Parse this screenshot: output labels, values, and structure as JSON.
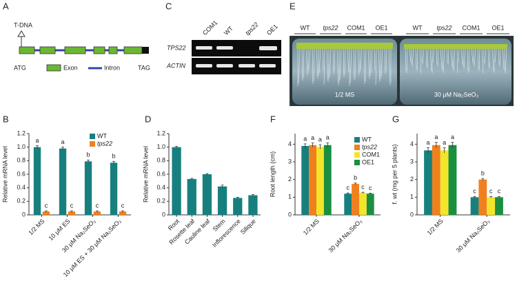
{
  "figure": {
    "a": {
      "label": "A",
      "tdna": "T-DNA",
      "start": "ATG",
      "stop": "TAG",
      "exon": "Exon",
      "intron": "Intron"
    },
    "c": {
      "label": "C",
      "lanes": [
        "COM1",
        "WT",
        "tps22",
        "OE1"
      ],
      "rows": [
        "TPS22",
        "ACTIN"
      ]
    },
    "e": {
      "label": "E",
      "lanes_left": [
        "WT",
        "tps22",
        "COM1",
        "OE1"
      ],
      "lanes_right": [
        "WT",
        "tps22",
        "COM1",
        "OE1"
      ],
      "plate_left": "1/2 MS",
      "plate_right": "30 μM Na₂SeO₃"
    }
  },
  "chart_data": [
    {
      "type": "bar",
      "label": "B",
      "y_label": "Relative mRNA level",
      "categories": [
        "1/2 MS",
        "10 μM ES",
        "30 μM Na₂SeO₃",
        "10 μM ES + 30 μM Na₂SeO₃"
      ],
      "series": [
        {
          "name": "WT",
          "color": "#17807f",
          "values": [
            1.0,
            0.98,
            0.79,
            0.77
          ],
          "errors": [
            0.02,
            0.02,
            0.02,
            0.02
          ],
          "letters": [
            "a",
            "a",
            "b",
            "b"
          ]
        },
        {
          "name": "tps22",
          "name_style": "italic",
          "color": "#f0801e",
          "values": [
            0.05,
            0.05,
            0.05,
            0.05
          ],
          "errors": [
            0.01,
            0.01,
            0.01,
            0.01
          ],
          "letters": [
            "c",
            "c",
            "c",
            "c"
          ]
        }
      ],
      "ylim": [
        0,
        1.2
      ],
      "yticks": [
        0,
        0.2,
        0.4,
        0.6,
        0.8,
        {
          "value": 1,
          "label": "1.0"
        },
        1.2
      ]
    },
    {
      "type": "bar",
      "label": "D",
      "y_label": "Relative mRNA level",
      "categories": [
        "Root",
        "Rosette leaf",
        "Cauline leaf",
        "Stem",
        "Inflorescence",
        "Silique"
      ],
      "series": [
        {
          "color": "#17807f",
          "values": [
            1.0,
            0.53,
            0.6,
            0.42,
            0.25,
            0.29
          ],
          "errors": [
            0.01,
            0.01,
            0.01,
            0.02,
            0.01,
            0.01
          ]
        }
      ],
      "ylim": [
        0,
        1.2
      ],
      "yticks": [
        0,
        0.2,
        0.4,
        0.6,
        0.8,
        {
          "value": 1,
          "label": "1.0"
        },
        1.2
      ]
    },
    {
      "type": "bar",
      "label": "F",
      "y_label": "Root length (cm)",
      "categories": [
        "1/2 MS",
        "30 μM Na₂SeO₃"
      ],
      "series": [
        {
          "name": "WT",
          "color": "#17807f",
          "values": [
            3.9,
            1.2
          ],
          "errors": [
            0.12,
            0.04
          ],
          "letters": [
            "a",
            "c"
          ]
        },
        {
          "name": "tps22",
          "name_style": "italic",
          "color": "#f0801e",
          "values": [
            3.95,
            1.75
          ],
          "errors": [
            0.12,
            0.05
          ],
          "letters": [
            "a",
            "b"
          ]
        },
        {
          "name": "COM1",
          "color": "#f3e62a",
          "values": [
            3.85,
            1.25
          ],
          "errors": [
            0.12,
            0.03
          ],
          "letters": [
            "a",
            "c"
          ]
        },
        {
          "name": "OE1",
          "color": "#1a8f40",
          "values": [
            3.95,
            1.2
          ],
          "errors": [
            0.13,
            0.03
          ],
          "letters": [
            "a",
            "c"
          ]
        }
      ],
      "ylim": [
        0,
        4.6
      ],
      "yticks": [
        0,
        1,
        2,
        3,
        4
      ]
    },
    {
      "type": "bar",
      "label": "G",
      "y_label": "f. wt (mg per 5 plants)",
      "categories": [
        "1/2 MS",
        "30 μM Na₂SeO₃"
      ],
      "series": [
        {
          "color": "#17807f",
          "values": [
            3.65,
            1.0
          ],
          "errors": [
            0.15,
            0.04
          ],
          "letters": [
            "a",
            "c"
          ]
        },
        {
          "color": "#f0801e",
          "values": [
            3.95,
            2.0
          ],
          "errors": [
            0.15,
            0.06
          ],
          "letters": [
            "a",
            "b"
          ]
        },
        {
          "color": "#f3e62a",
          "values": [
            3.65,
            1.0
          ],
          "errors": [
            0.15,
            0.04
          ],
          "letters": [
            "a",
            "c"
          ]
        },
        {
          "color": "#1a8f40",
          "values": [
            3.95,
            1.0
          ],
          "errors": [
            0.15,
            0.04
          ],
          "letters": [
            "a",
            "c"
          ]
        }
      ],
      "ylim": [
        0,
        4.6
      ],
      "yticks": [
        0,
        1,
        2,
        3,
        4
      ]
    }
  ]
}
